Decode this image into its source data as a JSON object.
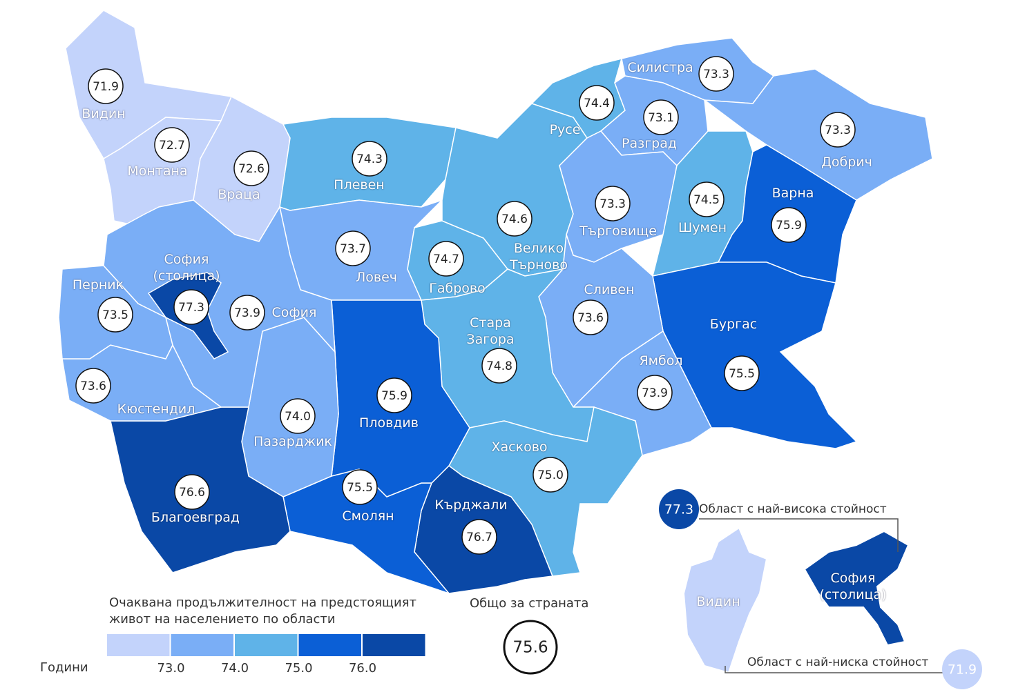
{
  "regions": [
    {
      "name": "Видин",
      "value": 71.9
    },
    {
      "name": "Монтана",
      "value": 72.7
    },
    {
      "name": "Враца",
      "value": 72.6
    },
    {
      "name": "Плевен",
      "value": 74.3
    },
    {
      "name": "Ловеч",
      "value": 73.7
    },
    {
      "name": "Габрово",
      "value": 74.7
    },
    {
      "name": "Велико Търново",
      "value": 74.6
    },
    {
      "name": "Русе",
      "value": 74.4
    },
    {
      "name": "Силистра",
      "value": 73.3
    },
    {
      "name": "Разград",
      "value": 73.1
    },
    {
      "name": "Добрич",
      "value": 73.3
    },
    {
      "name": "Търговище",
      "value": 73.3
    },
    {
      "name": "Шумен",
      "value": 74.5
    },
    {
      "name": "Варна",
      "value": 75.9
    },
    {
      "name": "Бургас",
      "value": 75.5
    },
    {
      "name": "Сливен",
      "value": 73.6
    },
    {
      "name": "Ямбол",
      "value": 73.9
    },
    {
      "name": "Стара Загора",
      "value": 74.8
    },
    {
      "name": "Хасково",
      "value": 75,
      "value_label": "75.0"
    },
    {
      "name": "Кърджали",
      "value": 76.7
    },
    {
      "name": "Смолян",
      "value": 75.5
    },
    {
      "name": "Пловдив",
      "value": 75.9
    },
    {
      "name": "Пазарджик",
      "value": 74,
      "value_label": "74.0"
    },
    {
      "name": "Благоевград",
      "value": 76.6
    },
    {
      "name": "Кюстендил",
      "value": 73.6
    },
    {
      "name": "Перник",
      "value": 73.5
    },
    {
      "name": "София",
      "value": 73.9
    },
    {
      "name": "София (столица)",
      "value": 77.3
    }
  ],
  "legend": {
    "title": "Очаквана продължителност на предстоящият живот на населението по области",
    "unit_label": "Години",
    "thresholds": [
      {
        "value": 73,
        "label": "73.0"
      },
      {
        "value": 74,
        "label": "74.0"
      },
      {
        "value": 75,
        "label": "75.0"
      },
      {
        "value": 76,
        "label": "76.0"
      }
    ],
    "colors": [
      "#c3d3fb",
      "#7aaef6",
      "#5fb3e8",
      "#0b5fd6",
      "#0a48a6"
    ]
  },
  "total": {
    "label": "Общо за страната",
    "value": 75.6
  },
  "highest": {
    "label": "Област с най-висока стойност",
    "value": 77.3,
    "region": "София (столица)"
  },
  "lowest": {
    "label": "Област с най-ниска стойност",
    "value": 71.9,
    "region": "Видин"
  }
}
